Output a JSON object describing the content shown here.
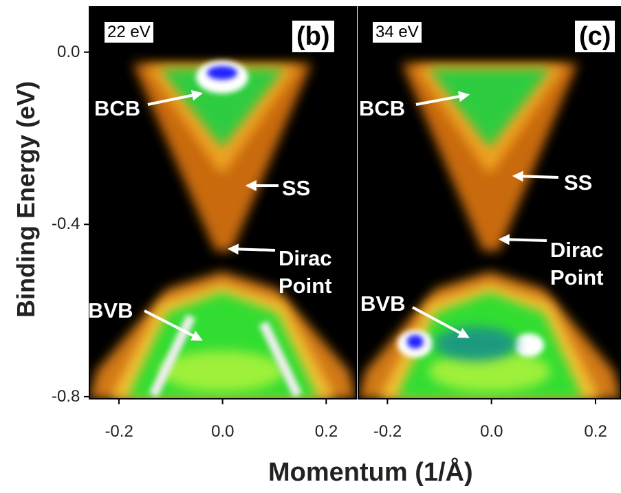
{
  "figure": {
    "xlabel": "Momentum (1/Å)",
    "ylabel": "Binding Energy (eV)"
  },
  "chart_data": [
    {
      "type": "image",
      "energy": "22 eV",
      "label": "(b)",
      "xlim": [
        -0.257,
        0.258
      ],
      "xticks": [
        -0.2,
        {
          "value": 0,
          "label": "0.0"
        },
        0.2
      ],
      "ylim": [
        -0.805,
        0.105
      ],
      "yticks": [
        {
          "value": 0,
          "label": "0.0"
        },
        -0.4,
        -0.8
      ],
      "annotations": [
        "BCB",
        "SS",
        "Dirac Point",
        "BVB"
      ]
    },
    {
      "type": "image",
      "energy": "34 eV",
      "label": "(c)",
      "xlim": [
        -0.256,
        0.249
      ],
      "xticks": [
        -0.2,
        {
          "value": 0,
          "label": "0.0"
        },
        0.2
      ],
      "ylim": [
        -0.805,
        0.105
      ],
      "annotations": [
        "BCB",
        "SS",
        "Dirac Point",
        "BVB"
      ]
    }
  ]
}
